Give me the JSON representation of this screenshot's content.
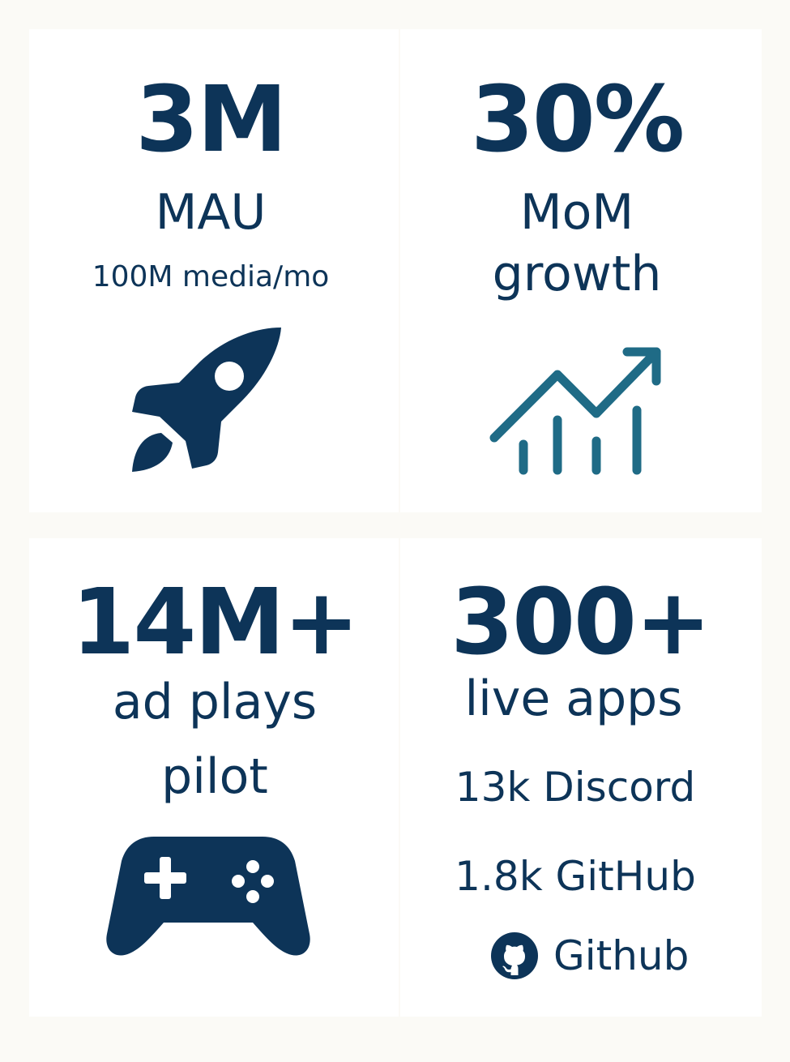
{
  "colors": {
    "background": "#fbfaf6",
    "panel": "#ffffff",
    "primary": "#0d3458",
    "chart_icon": "#1f6b86"
  },
  "stats": {
    "mau": {
      "value": "3M",
      "label": "MAU",
      "sublabel": "100M media/mo",
      "icon": "rocket-icon"
    },
    "growth": {
      "value": "30%",
      "label_line1": "MoM",
      "label_line2": "growth",
      "icon": "trending-chart-icon"
    },
    "ad_plays": {
      "value": "14M+",
      "label_line1": "ad plays",
      "label_line2": "pilot",
      "icon": "gamepad-icon"
    },
    "apps": {
      "value": "300+",
      "label": "live apps",
      "discord": "13k Discord",
      "github_stars": "1.8k GitHub",
      "github_link_label": "Github",
      "icon": "github-icon"
    }
  }
}
